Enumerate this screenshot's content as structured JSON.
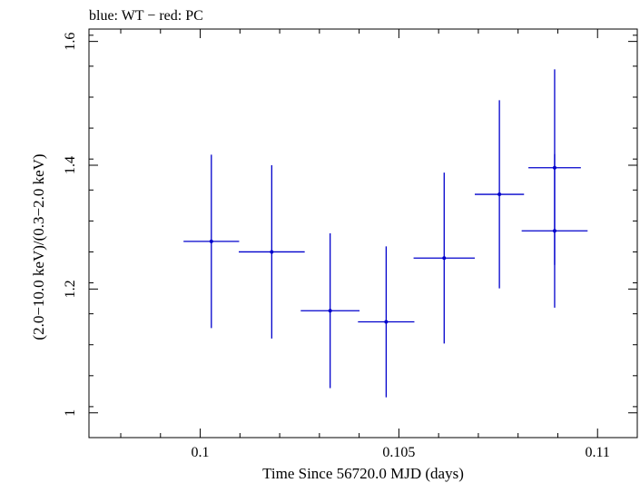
{
  "chart_data": {
    "type": "scatter",
    "title": "blue: WT − red: PC",
    "xlabel": "Time Since 56720.0 MJD (days)",
    "ylabel": "(2.0−10.0 keV)/(0.3−2.0 keV)",
    "xlim": [
      0.0972,
      0.111
    ],
    "ylim": [
      0.96,
      1.62
    ],
    "xticks": [
      0.1,
      0.105,
      0.11
    ],
    "xtick_labels": [
      "0.1",
      "0.105",
      "0.11"
    ],
    "yticks": [
      1.0,
      1.2,
      1.4,
      1.6
    ],
    "ytick_labels": [
      "1",
      "1.2",
      "1.4",
      "1.6"
    ],
    "grid": false,
    "series": [
      {
        "name": "WT",
        "color": "#0000cc",
        "points": [
          {
            "x": 0.10892,
            "xerr": 0.00066,
            "y": 1.396,
            "ylo": 1.239,
            "yhi": 1.555
          },
          {
            "x": 0.10028,
            "xerr": 0.0007,
            "y": 1.277,
            "ylo": 1.137,
            "yhi": 1.417
          },
          {
            "x": 0.1018,
            "xerr": 0.00083,
            "y": 1.26,
            "ylo": 1.12,
            "yhi": 1.4
          },
          {
            "x": 0.10327,
            "xerr": 0.00074,
            "y": 1.165,
            "ylo": 1.04,
            "yhi": 1.29
          },
          {
            "x": 0.10468,
            "xerr": 0.00071,
            "y": 1.147,
            "ylo": 1.025,
            "yhi": 1.269
          },
          {
            "x": 0.10614,
            "xerr": 0.00077,
            "y": 1.25,
            "ylo": 1.112,
            "yhi": 1.388
          },
          {
            "x": 0.10753,
            "xerr": 0.00062,
            "y": 1.353,
            "ylo": 1.201,
            "yhi": 1.505
          },
          {
            "x": 0.10892,
            "xerr": 0.00083,
            "y": 1.294,
            "ylo": 1.17,
            "yhi": 1.418
          }
        ]
      }
    ]
  }
}
